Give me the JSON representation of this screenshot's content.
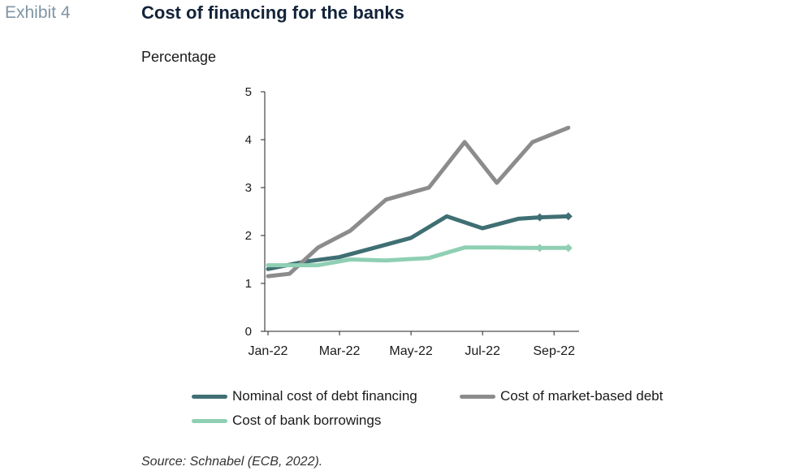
{
  "header": {
    "exhibit": "Exhibit 4",
    "title": "Cost of financing for the banks",
    "unit": "Percentage"
  },
  "source": "Source: Schnabel (ECB, 2022).",
  "chart_data": {
    "type": "line",
    "title": "Cost of financing for the banks",
    "ylabel": "Percentage",
    "xlabel": "",
    "xlim": [
      0,
      8.7
    ],
    "ylim": [
      0,
      5
    ],
    "y_ticks": [
      0,
      1,
      2,
      3,
      4,
      5
    ],
    "x_ticks": [
      {
        "x": 0,
        "label": "Jan-22"
      },
      {
        "x": 2,
        "label": "Mar-22"
      },
      {
        "x": 4,
        "label": "May-22"
      },
      {
        "x": 6,
        "label": "Jul-22"
      },
      {
        "x": 8,
        "label": "Sep-22"
      }
    ],
    "grid": false,
    "legend_position": "bottom",
    "series": [
      {
        "name": "Nominal cost of debt financing",
        "color": "#3f6f73",
        "x": [
          0,
          1,
          2,
          3,
          4,
          5,
          6,
          7,
          7.6,
          8.4
        ],
        "values": [
          1.3,
          1.45,
          1.55,
          1.75,
          1.95,
          2.4,
          2.15,
          2.35,
          2.38,
          2.4
        ],
        "markers_from_index": 8
      },
      {
        "name": "Cost of market-based debt",
        "color": "#8c8c8c",
        "x": [
          0,
          0.6,
          1.4,
          2.3,
          3.3,
          4.5,
          5.5,
          6.4,
          7.4,
          8.4
        ],
        "values": [
          1.15,
          1.2,
          1.75,
          2.1,
          2.75,
          3.0,
          3.95,
          3.1,
          3.95,
          4.25
        ]
      },
      {
        "name": "Cost of bank borrowings",
        "color": "#8fcfb3",
        "x": [
          0,
          1.4,
          2.3,
          3.3,
          4.5,
          5.5,
          6.4,
          7.4,
          7.6,
          8.4
        ],
        "values": [
          1.38,
          1.38,
          1.5,
          1.48,
          1.53,
          1.75,
          1.75,
          1.74,
          1.74,
          1.74
        ],
        "markers_from_index": 8
      }
    ]
  }
}
